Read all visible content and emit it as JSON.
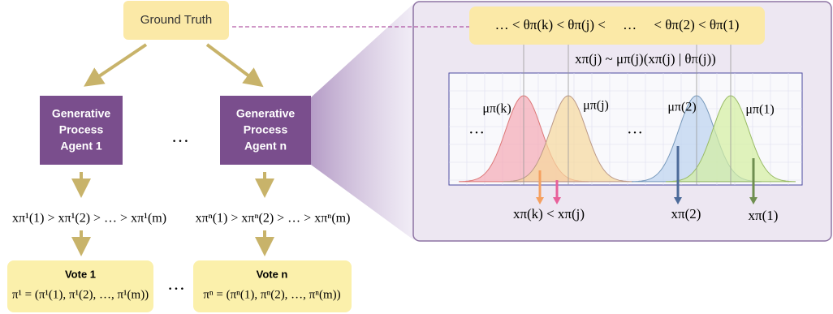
{
  "ground_truth": "Ground Truth",
  "agents": [
    {
      "lines": [
        "Generative",
        "Process",
        "Agent 1"
      ]
    },
    {
      "lines": [
        "Generative",
        "Process",
        "Agent n"
      ]
    }
  ],
  "ellipsis": "…",
  "rankings": [
    "xπ¹(1) > xπ¹(2) > … > xπ¹(m)",
    "xπⁿ(1) > xπⁿ(2) > … > xπⁿ(m)"
  ],
  "votes": [
    {
      "title": "Vote 1",
      "formula": "π¹ = (π¹(1), π¹(2), …, π¹(m))"
    },
    {
      "title": "Vote n",
      "formula": "πⁿ = (πⁿ(1), πⁿ(2), …, πⁿ(m))"
    }
  ],
  "order": "… < θπ(k) < θπ(j) <     …     < θπ(2) < θπ(1)",
  "model": "xπ(j) ~ μπ(j)(xπ(j) | θπ(j))",
  "dist_labels": [
    "μπ(k)",
    "μπ(j)",
    "μπ(2)",
    "μπ(1)"
  ],
  "samples": [
    "xπ(k) < xπ(j)",
    "xπ(2)",
    "xπ(1)"
  ]
}
